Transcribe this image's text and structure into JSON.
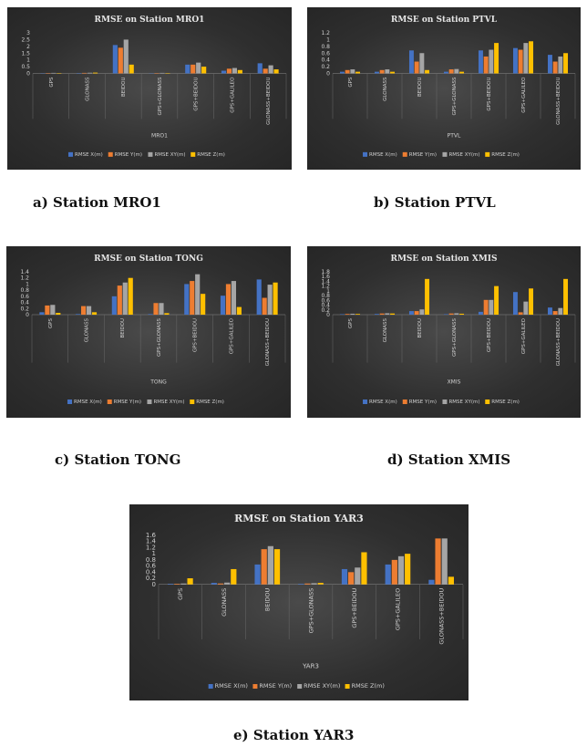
{
  "colors": {
    "x": "#4472c4",
    "y": "#ed7d31",
    "xy": "#a5a5a5",
    "z": "#ffc000"
  },
  "captions": {
    "a": "a) Station MRO1",
    "b": "b) Station PTVL",
    "c": "c) Station TONG",
    "d": "d) Station XMIS",
    "e": "e) Station YAR3"
  },
  "chart_data": [
    {
      "type": "bar",
      "title": "RMSE on Station MRO1",
      "xlabel": "MRO1",
      "categories": [
        "GPS",
        "GLONASS",
        "BEIDOU",
        "GPS+GLONASS",
        "GPS+BEIDOU",
        "GPS+GALILEO",
        "GLONASS+BEIDOU"
      ],
      "yticks": [
        "0",
        "0.5",
        "1",
        "1.5",
        "2",
        "2.5",
        "3"
      ],
      "ylim": [
        0,
        3
      ],
      "series": [
        {
          "name": "RMSE X(m)",
          "values": [
            0.02,
            0.03,
            2.1,
            0.02,
            0.65,
            0.2,
            0.75
          ]
        },
        {
          "name": "RMSE Y(m)",
          "values": [
            0.03,
            0.04,
            1.9,
            0.03,
            0.65,
            0.35,
            0.35
          ]
        },
        {
          "name": "RMSE XY(m)",
          "values": [
            0.04,
            0.05,
            2.5,
            0.04,
            0.8,
            0.4,
            0.6
          ]
        },
        {
          "name": "RMSE Z(m)",
          "values": [
            0.03,
            0.06,
            0.65,
            0.03,
            0.5,
            0.25,
            0.3
          ]
        }
      ],
      "legend": "bottom",
      "grid": false
    },
    {
      "type": "bar",
      "title": "RMSE on Station PTVL",
      "xlabel": "PTVL",
      "categories": [
        "GPS",
        "GLONASS",
        "BEIDOU",
        "GPS+GLONASS",
        "GPS+BEIDOU",
        "GPS+GALILEO",
        "GLONASS+BEIDOU"
      ],
      "yticks": [
        "0",
        "0.2",
        "0.4",
        "0.6",
        "0.8",
        "1",
        "1.2"
      ],
      "ylim": [
        0,
        1.2
      ],
      "series": [
        {
          "name": "RMSE X(m)",
          "values": [
            0.05,
            0.05,
            0.68,
            0.05,
            0.68,
            0.75,
            0.55
          ]
        },
        {
          "name": "RMSE Y(m)",
          "values": [
            0.1,
            0.1,
            0.35,
            0.12,
            0.5,
            0.7,
            0.35
          ]
        },
        {
          "name": "RMSE XY(m)",
          "values": [
            0.12,
            0.12,
            0.6,
            0.13,
            0.7,
            0.9,
            0.5
          ]
        },
        {
          "name": "RMSE Z(m)",
          "values": [
            0.05,
            0.05,
            0.1,
            0.05,
            0.9,
            0.95,
            0.6
          ]
        }
      ],
      "legend": "bottom",
      "grid": false
    },
    {
      "type": "bar",
      "title": "RMSE on Station TONG",
      "xlabel": "TONG",
      "categories": [
        "GPS",
        "GLONASS",
        "BEIDOU",
        "GPS+GLONASS",
        "GPS+BEIDOU",
        "GPS+GALILEO",
        "GLONASS+BEIDOU"
      ],
      "yticks": [
        "0",
        "0.2",
        "0.4",
        "0.6",
        "0.8",
        "1",
        "1.2",
        "1.4"
      ],
      "ylim": [
        0,
        1.4
      ],
      "series": [
        {
          "name": "RMSE X(m)",
          "values": [
            0.08,
            0.02,
            0.6,
            0.02,
            1.0,
            0.62,
            1.15
          ]
        },
        {
          "name": "RMSE Y(m)",
          "values": [
            0.3,
            0.28,
            0.95,
            0.38,
            1.1,
            1.0,
            0.55
          ]
        },
        {
          "name": "RMSE XY(m)",
          "values": [
            0.32,
            0.28,
            1.05,
            0.38,
            1.32,
            1.1,
            0.98
          ]
        },
        {
          "name": "RMSE Z(m)",
          "values": [
            0.06,
            0.08,
            1.2,
            0.05,
            0.68,
            0.25,
            1.05
          ]
        }
      ],
      "legend": "bottom",
      "grid": false
    },
    {
      "type": "bar",
      "title": "RMSE on Station XMIS",
      "xlabel": "XMIS",
      "categories": [
        "GPS",
        "GLONASS",
        "BEIDOU",
        "GPS+GLONASS",
        "GPS+BEIDOU",
        "GPS+GALILEO",
        "GLONASS+BEIDOU"
      ],
      "yticks": [
        "0",
        "0.2",
        "0.4",
        "0.6",
        "0.8",
        "1",
        "1.2",
        "1.4",
        "1.6",
        "1.8"
      ],
      "ylim": [
        0,
        1.8
      ],
      "series": [
        {
          "name": "RMSE X(m)",
          "values": [
            0.02,
            0.03,
            0.15,
            0.02,
            0.12,
            0.95,
            0.3
          ]
        },
        {
          "name": "RMSE Y(m)",
          "values": [
            0.03,
            0.05,
            0.15,
            0.05,
            0.62,
            0.1,
            0.15
          ]
        },
        {
          "name": "RMSE XY(m)",
          "values": [
            0.04,
            0.06,
            0.22,
            0.06,
            0.62,
            0.55,
            0.28
          ]
        },
        {
          "name": "RMSE Z(m)",
          "values": [
            0.03,
            0.05,
            1.5,
            0.04,
            1.2,
            1.1,
            1.5
          ]
        }
      ],
      "legend": "bottom",
      "grid": false
    },
    {
      "type": "bar",
      "title": "RMSE on Station YAR3",
      "xlabel": "YAR3",
      "categories": [
        "GPS",
        "GLONASS",
        "BEIDOU",
        "GPS+GLONASS",
        "GPS+BEIDOU",
        "GPS+GALILEO",
        "GLONASS+BEIDOU"
      ],
      "yticks": [
        "0",
        "0.2",
        "0.4",
        "0.6",
        "0.8",
        "1",
        "1.2",
        "1.4",
        "1.6"
      ],
      "ylim": [
        0,
        1.6
      ],
      "series": [
        {
          "name": "RMSE X(m)",
          "values": [
            0.02,
            0.05,
            0.65,
            0.02,
            0.5,
            0.65,
            0.15
          ]
        },
        {
          "name": "RMSE Y(m)",
          "values": [
            0.02,
            0.03,
            1.15,
            0.03,
            0.4,
            0.8,
            1.5
          ]
        },
        {
          "name": "RMSE XY(m)",
          "values": [
            0.03,
            0.06,
            1.25,
            0.04,
            0.55,
            0.92,
            1.5
          ]
        },
        {
          "name": "RMSE Z(m)",
          "values": [
            0.2,
            0.5,
            1.15,
            0.05,
            1.05,
            1.0,
            0.25
          ]
        }
      ],
      "legend": "bottom",
      "grid": false
    }
  ]
}
